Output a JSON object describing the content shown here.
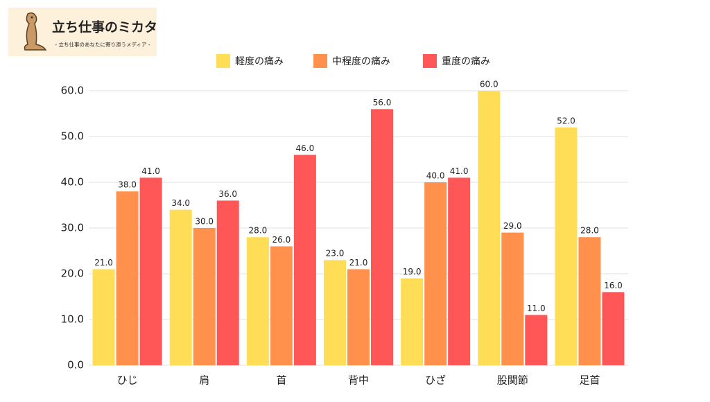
{
  "brand": {
    "title": "立ち仕事のミカタ",
    "subtitle": "- 立ち仕事のあなたに寄り添うメディア -"
  },
  "chart_data": {
    "type": "bar",
    "categories": [
      "ひじ",
      "肩",
      "首",
      "背中",
      "ひざ",
      "股関節",
      "足首"
    ],
    "series": [
      {
        "name": "軽度の痛み",
        "color": "#ffdd57",
        "values": [
          21,
          34,
          28,
          23,
          19,
          60,
          52
        ],
        "value_labels": [
          "21.0",
          "34.0",
          "28.0",
          "23.0",
          "19.0",
          "60.0",
          "52.0"
        ]
      },
      {
        "name": "中程度の痛み",
        "color": "#ff914d",
        "values": [
          38,
          30,
          26,
          21,
          40,
          29,
          28
        ],
        "value_labels": [
          "38.0",
          "30.0",
          "26.0",
          "21.0",
          "40.0",
          "29.0",
          "28.0"
        ]
      },
      {
        "name": "重度の痛み",
        "color": "#ff5757",
        "values": [
          41,
          36,
          46,
          56,
          41,
          11,
          16
        ],
        "value_labels": [
          "41.0",
          "36.0",
          "46.0",
          "56.0",
          "41.0",
          "11.0",
          "16.0"
        ]
      }
    ],
    "ylim": [
      0,
      60
    ],
    "yticks": [
      {
        "value": 0,
        "label": "0.0"
      },
      {
        "value": 10,
        "label": "10.0"
      },
      {
        "value": 20,
        "label": "20.0"
      },
      {
        "value": 30,
        "label": "30.0"
      },
      {
        "value": 40,
        "label": "40.0"
      },
      {
        "value": 50,
        "label": "50.0"
      },
      {
        "value": 60,
        "label": "60.0"
      }
    ],
    "grid": true,
    "legend": "top"
  }
}
